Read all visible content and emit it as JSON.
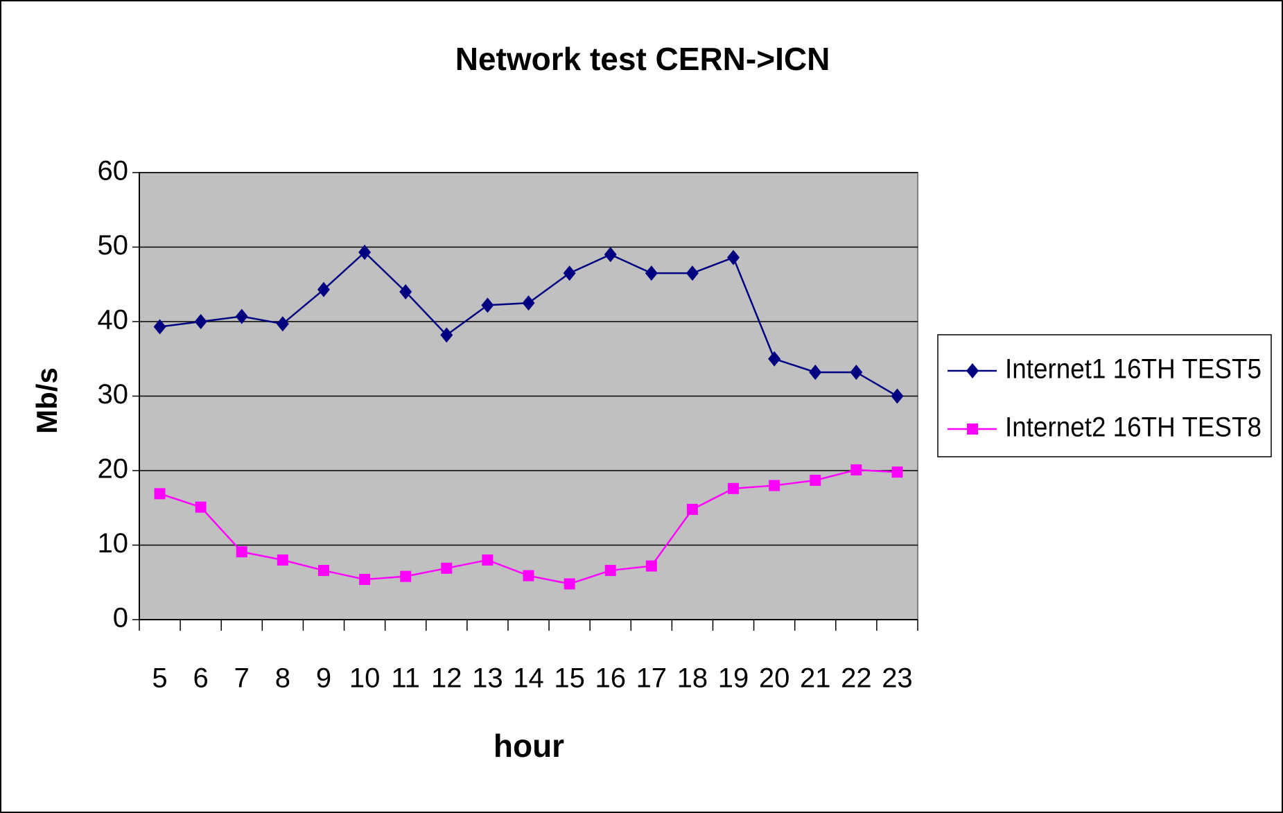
{
  "chart_data": {
    "type": "line",
    "title": "Network test CERN->ICN",
    "x_label": "hour",
    "y_label": "Mb/s",
    "categories": [
      "5",
      "6",
      "7",
      "8",
      "9",
      "10",
      "11",
      "12",
      "13",
      "14",
      "15",
      "16",
      "17",
      "18",
      "19",
      "20",
      "21",
      "22",
      "23"
    ],
    "series": [
      {
        "name": "Internet1 16TH TEST5",
        "color": "#000080",
        "marker": "diamond",
        "values": [
          39.3,
          40,
          40.7,
          39.7,
          44.3,
          49.3,
          44,
          38.2,
          42.2,
          42.5,
          46.5,
          49,
          46.5,
          46.5,
          48.6,
          35,
          33.2,
          33.2,
          30
        ]
      },
      {
        "name": "Internet2 16TH TEST8",
        "color": "#ff00ff",
        "marker": "square",
        "values": [
          16.9,
          15.1,
          9.1,
          8,
          6.6,
          5.4,
          5.8,
          6.9,
          8,
          5.9,
          4.8,
          6.6,
          7.2,
          14.8,
          17.6,
          18,
          18.7,
          20.1,
          19.8
        ]
      }
    ],
    "ylim": [
      0,
      60
    ],
    "yticks": [
      0,
      10,
      20,
      30,
      40,
      50,
      60
    ],
    "grid": true,
    "legend": "right",
    "plot_background": "#c0c0c0"
  }
}
